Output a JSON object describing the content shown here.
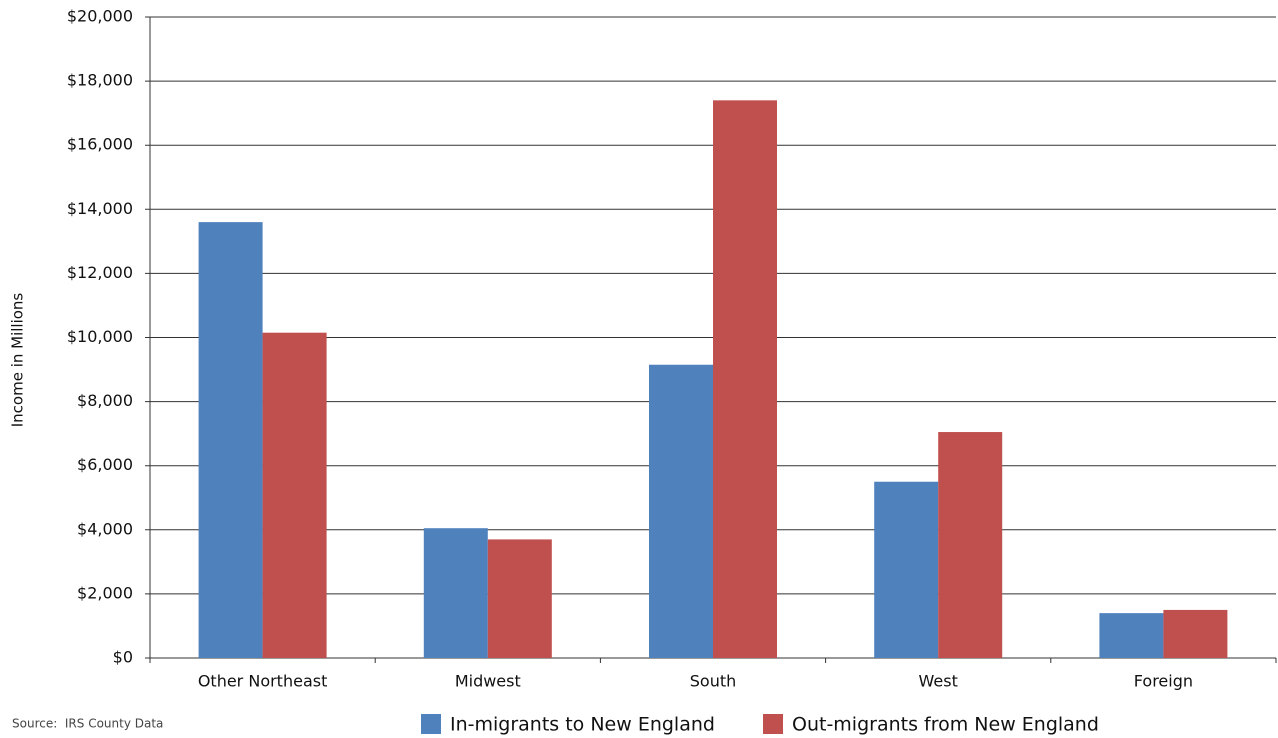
{
  "chart_data": {
    "type": "bar",
    "y_axis_label": "Income in Millions",
    "source": "Source:  IRS County Data",
    "categories": [
      "Other Northeast",
      "Midwest",
      "South",
      "West",
      "Foreign"
    ],
    "series": [
      {
        "name": "In-migrants to New England",
        "color": "#4f81bd",
        "values": [
          13600,
          4050,
          9150,
          5500,
          1400
        ]
      },
      {
        "name": "Out-migrants from New England",
        "color": "#c0504d",
        "values": [
          10150,
          3700,
          17400,
          7050,
          1500
        ]
      }
    ],
    "ylim": [
      0,
      20000
    ],
    "yticks": [
      {
        "value": 0,
        "label": "$0"
      },
      {
        "value": 2000,
        "label": "$2,000"
      },
      {
        "value": 4000,
        "label": "$4,000"
      },
      {
        "value": 6000,
        "label": "$6,000"
      },
      {
        "value": 8000,
        "label": "$8,000"
      },
      {
        "value": 10000,
        "label": "$10,000"
      },
      {
        "value": 12000,
        "label": "$12,000"
      },
      {
        "value": 14000,
        "label": "$14,000"
      },
      {
        "value": 16000,
        "label": "$16,000"
      },
      {
        "value": 18000,
        "label": "$18,000"
      },
      {
        "value": 20000,
        "label": "$20,000"
      }
    ],
    "grid": true
  }
}
